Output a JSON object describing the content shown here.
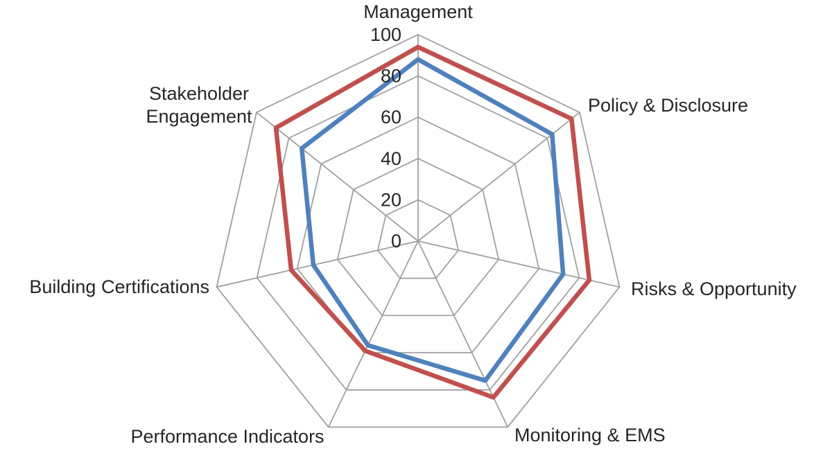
{
  "chart_data": {
    "type": "radar",
    "title": "",
    "categories": [
      "Management",
      "Policy & Disclosure",
      "Risks & Opportunity",
      "Monitoring & EMS",
      "Performance Indicators",
      "Building Certifications",
      "Stakeholder Engagement"
    ],
    "series": [
      {
        "id": "series-blue",
        "color": "#4F81BD",
        "values": [
          88,
          83,
          72,
          75,
          56,
          52,
          72
        ]
      },
      {
        "id": "series-red",
        "color": "#C0504D",
        "values": [
          94,
          95,
          85,
          84,
          59,
          63,
          88
        ]
      }
    ],
    "ticks": [
      0,
      20,
      40,
      60,
      80,
      100
    ],
    "axis_range": [
      0,
      100
    ],
    "grid": true,
    "legend_position": "none",
    "colors": {
      "gridline": "#A0A0A0",
      "label": "#262626",
      "background": "#FFFFFF"
    }
  }
}
